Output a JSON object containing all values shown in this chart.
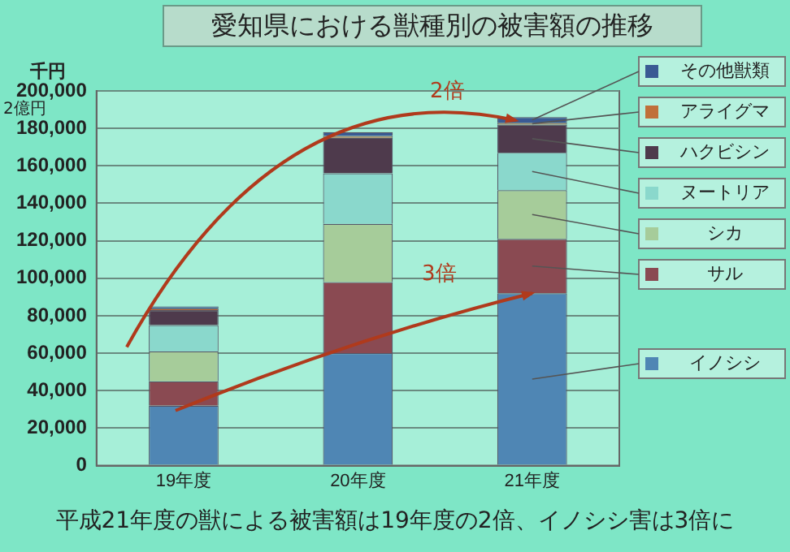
{
  "chart_data": {
    "type": "bar",
    "stacked": true,
    "title": "愛知県における獣種別の被害額の推移",
    "ylabel": "千円",
    "categories": [
      "19年度",
      "20年度",
      "21年度"
    ],
    "series": [
      {
        "name": "イノシシ",
        "color": "#4f86b4",
        "values": [
          32000,
          60000,
          92000
        ]
      },
      {
        "name": "サル",
        "color": "#8a4a52",
        "values": [
          13000,
          38000,
          29000
        ]
      },
      {
        "name": "シカ",
        "color": "#a6cc9a",
        "values": [
          16000,
          31000,
          26000
        ]
      },
      {
        "name": "ヌートリア",
        "color": "#8ad8cc",
        "values": [
          14000,
          27000,
          20000
        ]
      },
      {
        "name": "ハクビシン",
        "color": "#4e3a4c",
        "values": [
          8000,
          19000,
          15000
        ]
      },
      {
        "name": "アライグマ",
        "color": "#c0703a",
        "values": [
          1000,
          1000,
          1000
        ]
      },
      {
        "name": "その他獣類",
        "color": "#3a5a94",
        "values": [
          1000,
          2000,
          3000
        ]
      }
    ],
    "ylim": [
      0,
      200000
    ],
    "yticks": [
      0,
      {
        "value": 20000,
        "label": "20,000"
      },
      {
        "value": 40000,
        "label": "40,000"
      },
      {
        "value": 60000,
        "label": "60,000"
      },
      {
        "value": 80000,
        "label": "80,000"
      },
      {
        "value": 100000,
        "label": "100,000"
      },
      {
        "value": 120000,
        "label": "120,000"
      },
      {
        "value": 140000,
        "label": "140,000"
      },
      {
        "value": 160000,
        "label": "160,000"
      },
      {
        "value": 180000,
        "label": "180,000"
      },
      {
        "value": 200000,
        "label": "200,000"
      }
    ],
    "grid": "y",
    "legend": "right",
    "annotations": [
      "2億円",
      "2倍",
      "3倍",
      "平成21年度の獣による被害額は19年度の2倍、イノシシ害は3倍に"
    ]
  }
}
